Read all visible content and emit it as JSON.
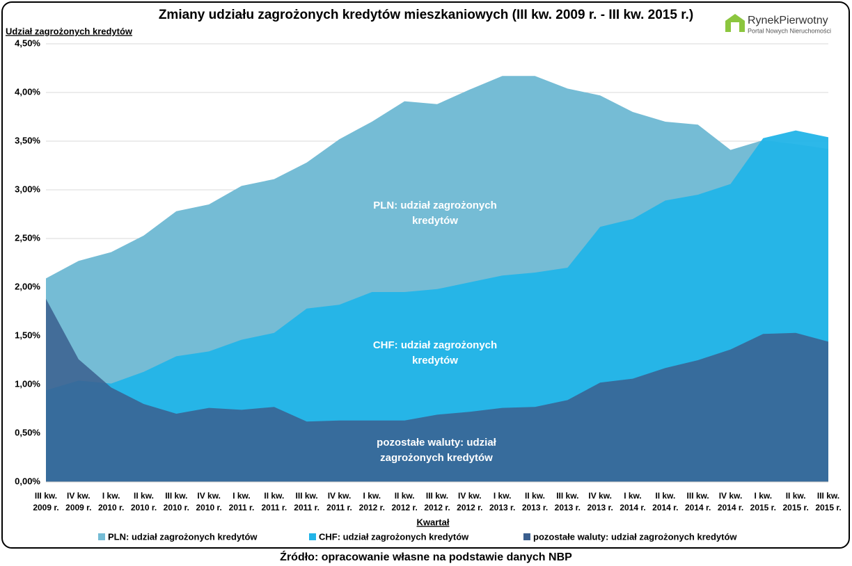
{
  "chart_data": {
    "type": "area",
    "title": "Zmiany udziału zagrożonych kredytów mieszkaniowych (III kw. 2009 r. - III kw. 2015 r.)",
    "y_label": "Udział zagrożonych kredytów",
    "x_label": "Kwartał",
    "source": "Źródło: opracowanie własne na podstawie danych NBP",
    "logo": {
      "name": "RynekPierwotny",
      "tagline": "Portal Nowych Nieruchomości"
    },
    "categories": [
      "III kw. 2009 r.",
      "IV kw. 2009 r.",
      "I kw. 2010 r.",
      "II kw. 2010 r.",
      "III kw. 2010 r.",
      "IV kw. 2010 r.",
      "I kw. 2011 r.",
      "II kw. 2011 r.",
      "III kw. 2011 r.",
      "IV kw. 2011 r.",
      "I kw. 2012 r.",
      "II kw. 2012 r.",
      "III kw. 2012 r.",
      "IV kw. 2012 r.",
      "I kw. 2013 r.",
      "II kw. 2013 r.",
      "III kw. 2013 r.",
      "IV kw. 2013 r.",
      "I kw. 2014 r.",
      "II kw. 2014 r.",
      "III kw. 2014 r.",
      "IV kw. 2014 r.",
      "I kw. 2015 r.",
      "II kw. 2015 r.",
      "III kw. 2015 r."
    ],
    "series": [
      {
        "name": "PLN: udział zagrożonych kredytów",
        "color": "#75bcd5",
        "label": "PLN: udział zagrożonych kredytów",
        "values": [
          2.09,
          2.27,
          2.36,
          2.53,
          2.78,
          2.85,
          3.04,
          3.11,
          3.28,
          3.52,
          3.7,
          3.91,
          3.88,
          4.03,
          4.17,
          4.17,
          4.04,
          3.97,
          3.8,
          3.7,
          3.67,
          3.41,
          3.51,
          3.47,
          3.42
        ]
      },
      {
        "name": "CHF: udział zagrożonych kredytów",
        "color": "#22b4e8",
        "label": "CHF: udział zagrożonych kredytów",
        "values": [
          0.94,
          1.04,
          1.01,
          1.13,
          1.29,
          1.34,
          1.46,
          1.53,
          1.78,
          1.82,
          1.95,
          1.95,
          1.98,
          2.05,
          2.12,
          2.15,
          2.2,
          2.62,
          2.7,
          2.89,
          2.95,
          3.06,
          3.53,
          3.61,
          3.54
        ]
      },
      {
        "name": "pozostałe waluty: udział zagrożonych kredytów",
        "color": "#3b5f8e",
        "label": "pozostałe waluty: udział zagrożonych kredytów",
        "values": [
          1.88,
          1.26,
          0.97,
          0.8,
          0.7,
          0.76,
          0.74,
          0.77,
          0.62,
          0.63,
          0.63,
          0.63,
          0.69,
          0.72,
          0.76,
          0.77,
          0.84,
          1.02,
          1.06,
          1.17,
          1.25,
          1.36,
          1.52,
          1.53,
          1.44
        ]
      }
    ],
    "ylim": [
      0,
      4.5
    ],
    "yticks": [
      {
        "value": 0,
        "label": "0,00%"
      },
      {
        "value": 0.5,
        "label": "0,50%"
      },
      {
        "value": 1,
        "label": "1,00%"
      },
      {
        "value": 1.5,
        "label": "1,50%"
      },
      {
        "value": 2,
        "label": "2,00%"
      },
      {
        "value": 2.5,
        "label": "2,50%"
      },
      {
        "value": 3,
        "label": "3,00%"
      },
      {
        "value": 3.5,
        "label": "3,50%"
      },
      {
        "value": 4,
        "label": "4,00%"
      },
      {
        "value": 4.5,
        "label": "4,50%"
      }
    ],
    "grid": true,
    "legend": "bottom"
  }
}
